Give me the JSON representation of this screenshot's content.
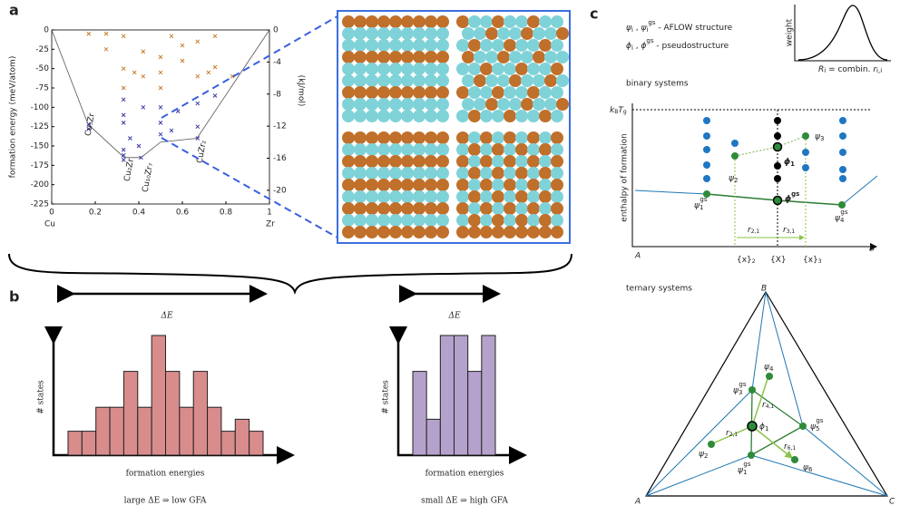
{
  "panel_a": {
    "label": "a",
    "ylabel": "formation energy (meV/atom)",
    "y2label": "(kJ/mol)",
    "xlim": [
      0,
      1
    ],
    "xticks": [
      0,
      0.2,
      0.4,
      0.6,
      0.8,
      1
    ],
    "x_end_labels": [
      "Cu",
      "Zr"
    ],
    "ylim": [
      0,
      -225
    ],
    "yticks": [
      0,
      -25,
      -50,
      -75,
      -100,
      -125,
      -150,
      -175,
      -200,
      -225
    ],
    "y2lim": [
      0,
      -21.71
    ],
    "y2ticks": [
      0,
      -4,
      -8,
      -12,
      -16,
      -20
    ],
    "hull": {
      "x": [
        0,
        0.167,
        0.333,
        0.41,
        0.5,
        0.667,
        1
      ],
      "y": [
        0,
        -122,
        -165,
        -165,
        -145,
        -140,
        0
      ]
    },
    "series": [
      {
        "color": "#c87d2a",
        "x": [
          0.17,
          0.25,
          0.25,
          0.33,
          0.33,
          0.33,
          0.38,
          0.42,
          0.42,
          0.5,
          0.5,
          0.5,
          0.55,
          0.6,
          0.6,
          0.67,
          0.67,
          0.72,
          0.75,
          0.75,
          0.83
        ],
        "y": [
          -5,
          -5,
          -25,
          -8,
          -50,
          -75,
          -55,
          -28,
          -60,
          -35,
          -55,
          -75,
          -8,
          -40,
          -20,
          -15,
          -60,
          -55,
          -48,
          -8,
          -60
        ]
      },
      {
        "color": "#3a3aa8",
        "x": [
          0.17,
          0.17,
          0.33,
          0.33,
          0.33,
          0.33,
          0.33,
          0.33,
          0.36,
          0.4,
          0.41,
          0.42,
          0.5,
          0.5,
          0.5,
          0.55,
          0.58,
          0.67,
          0.67,
          0.67,
          0.75
        ],
        "y": [
          -122,
          -128,
          -90,
          -110,
          -120,
          -155,
          -162,
          -168,
          -140,
          -150,
          -165,
          -100,
          -100,
          -120,
          -135,
          -130,
          -105,
          -95,
          -125,
          -140,
          -85
        ]
      }
    ],
    "phases": [
      "Cu₅Zr",
      "Cu₂Zr",
      "Cu₁₀Zr₇",
      "CuZr₂"
    ]
  },
  "panel_b": {
    "label": "b",
    "delta": "ΔE",
    "ylabel": "# states",
    "xlabel": "formation energies",
    "left": {
      "color": "#d98c8c",
      "counts": [
        1,
        1,
        2,
        2,
        3.5,
        2,
        5,
        3.5,
        2,
        3.5,
        2,
        1,
        1.5,
        1
      ],
      "caption": "large ΔE ⇒ low GFA"
    },
    "right": {
      "color": "#b5a2cc",
      "counts": [
        3.5,
        1.5,
        5,
        5,
        3.5,
        5
      ],
      "caption": "small ΔE ⇒ high GFA"
    }
  },
  "panel_c": {
    "label": "c",
    "legend": [
      [
        "ψ",
        "i",
        " , ",
        "ψ",
        "i",
        "gs",
        " - AFLOW structure"
      ],
      [
        "ϕ",
        "i",
        " , ",
        "ϕ",
        "gs",
        " - pseudostructure"
      ]
    ],
    "inset": {
      "ylabel": "weight",
      "xlabel": [
        "R",
        "i",
        " = combin. ",
        "r",
        "i,i"
      ]
    },
    "binary": {
      "title": "binary systems",
      "kt": [
        "k",
        "B",
        "T",
        "g"
      ],
      "ylabel": "enthalpy of formation",
      "A": "A",
      "B": "B",
      "xlabels": [
        [
          "{x}",
          "2"
        ],
        [
          "{X}"
        ],
        [
          "{x}",
          "3"
        ]
      ],
      "r": [
        [
          "r",
          "2,1"
        ],
        [
          "r",
          "3,1"
        ]
      ],
      "points": [
        [
          "ψ",
          "1",
          "gs"
        ],
        [
          "ψ",
          "2"
        ],
        [
          "ψ",
          "3"
        ],
        [
          "ψ",
          "4",
          "gs"
        ],
        [
          "ϕ",
          "1"
        ],
        [
          "ϕ",
          "gs"
        ]
      ]
    },
    "ternary": {
      "title": "ternary systems",
      "A": "A",
      "B": "B",
      "C": "C",
      "points": [
        [
          "ψ",
          "3",
          "gs"
        ],
        [
          "ψ",
          "4"
        ],
        [
          "ψ",
          "5",
          "gs"
        ],
        [
          "ψ",
          "1",
          "gs"
        ],
        [
          "ψ",
          "2"
        ],
        [
          "ψ",
          "6"
        ],
        [
          "ϕ",
          "1"
        ]
      ],
      "r": [
        [
          "r",
          "4,1"
        ],
        [
          "r",
          "2,1"
        ],
        [
          "r",
          "6,1"
        ]
      ]
    }
  }
}
